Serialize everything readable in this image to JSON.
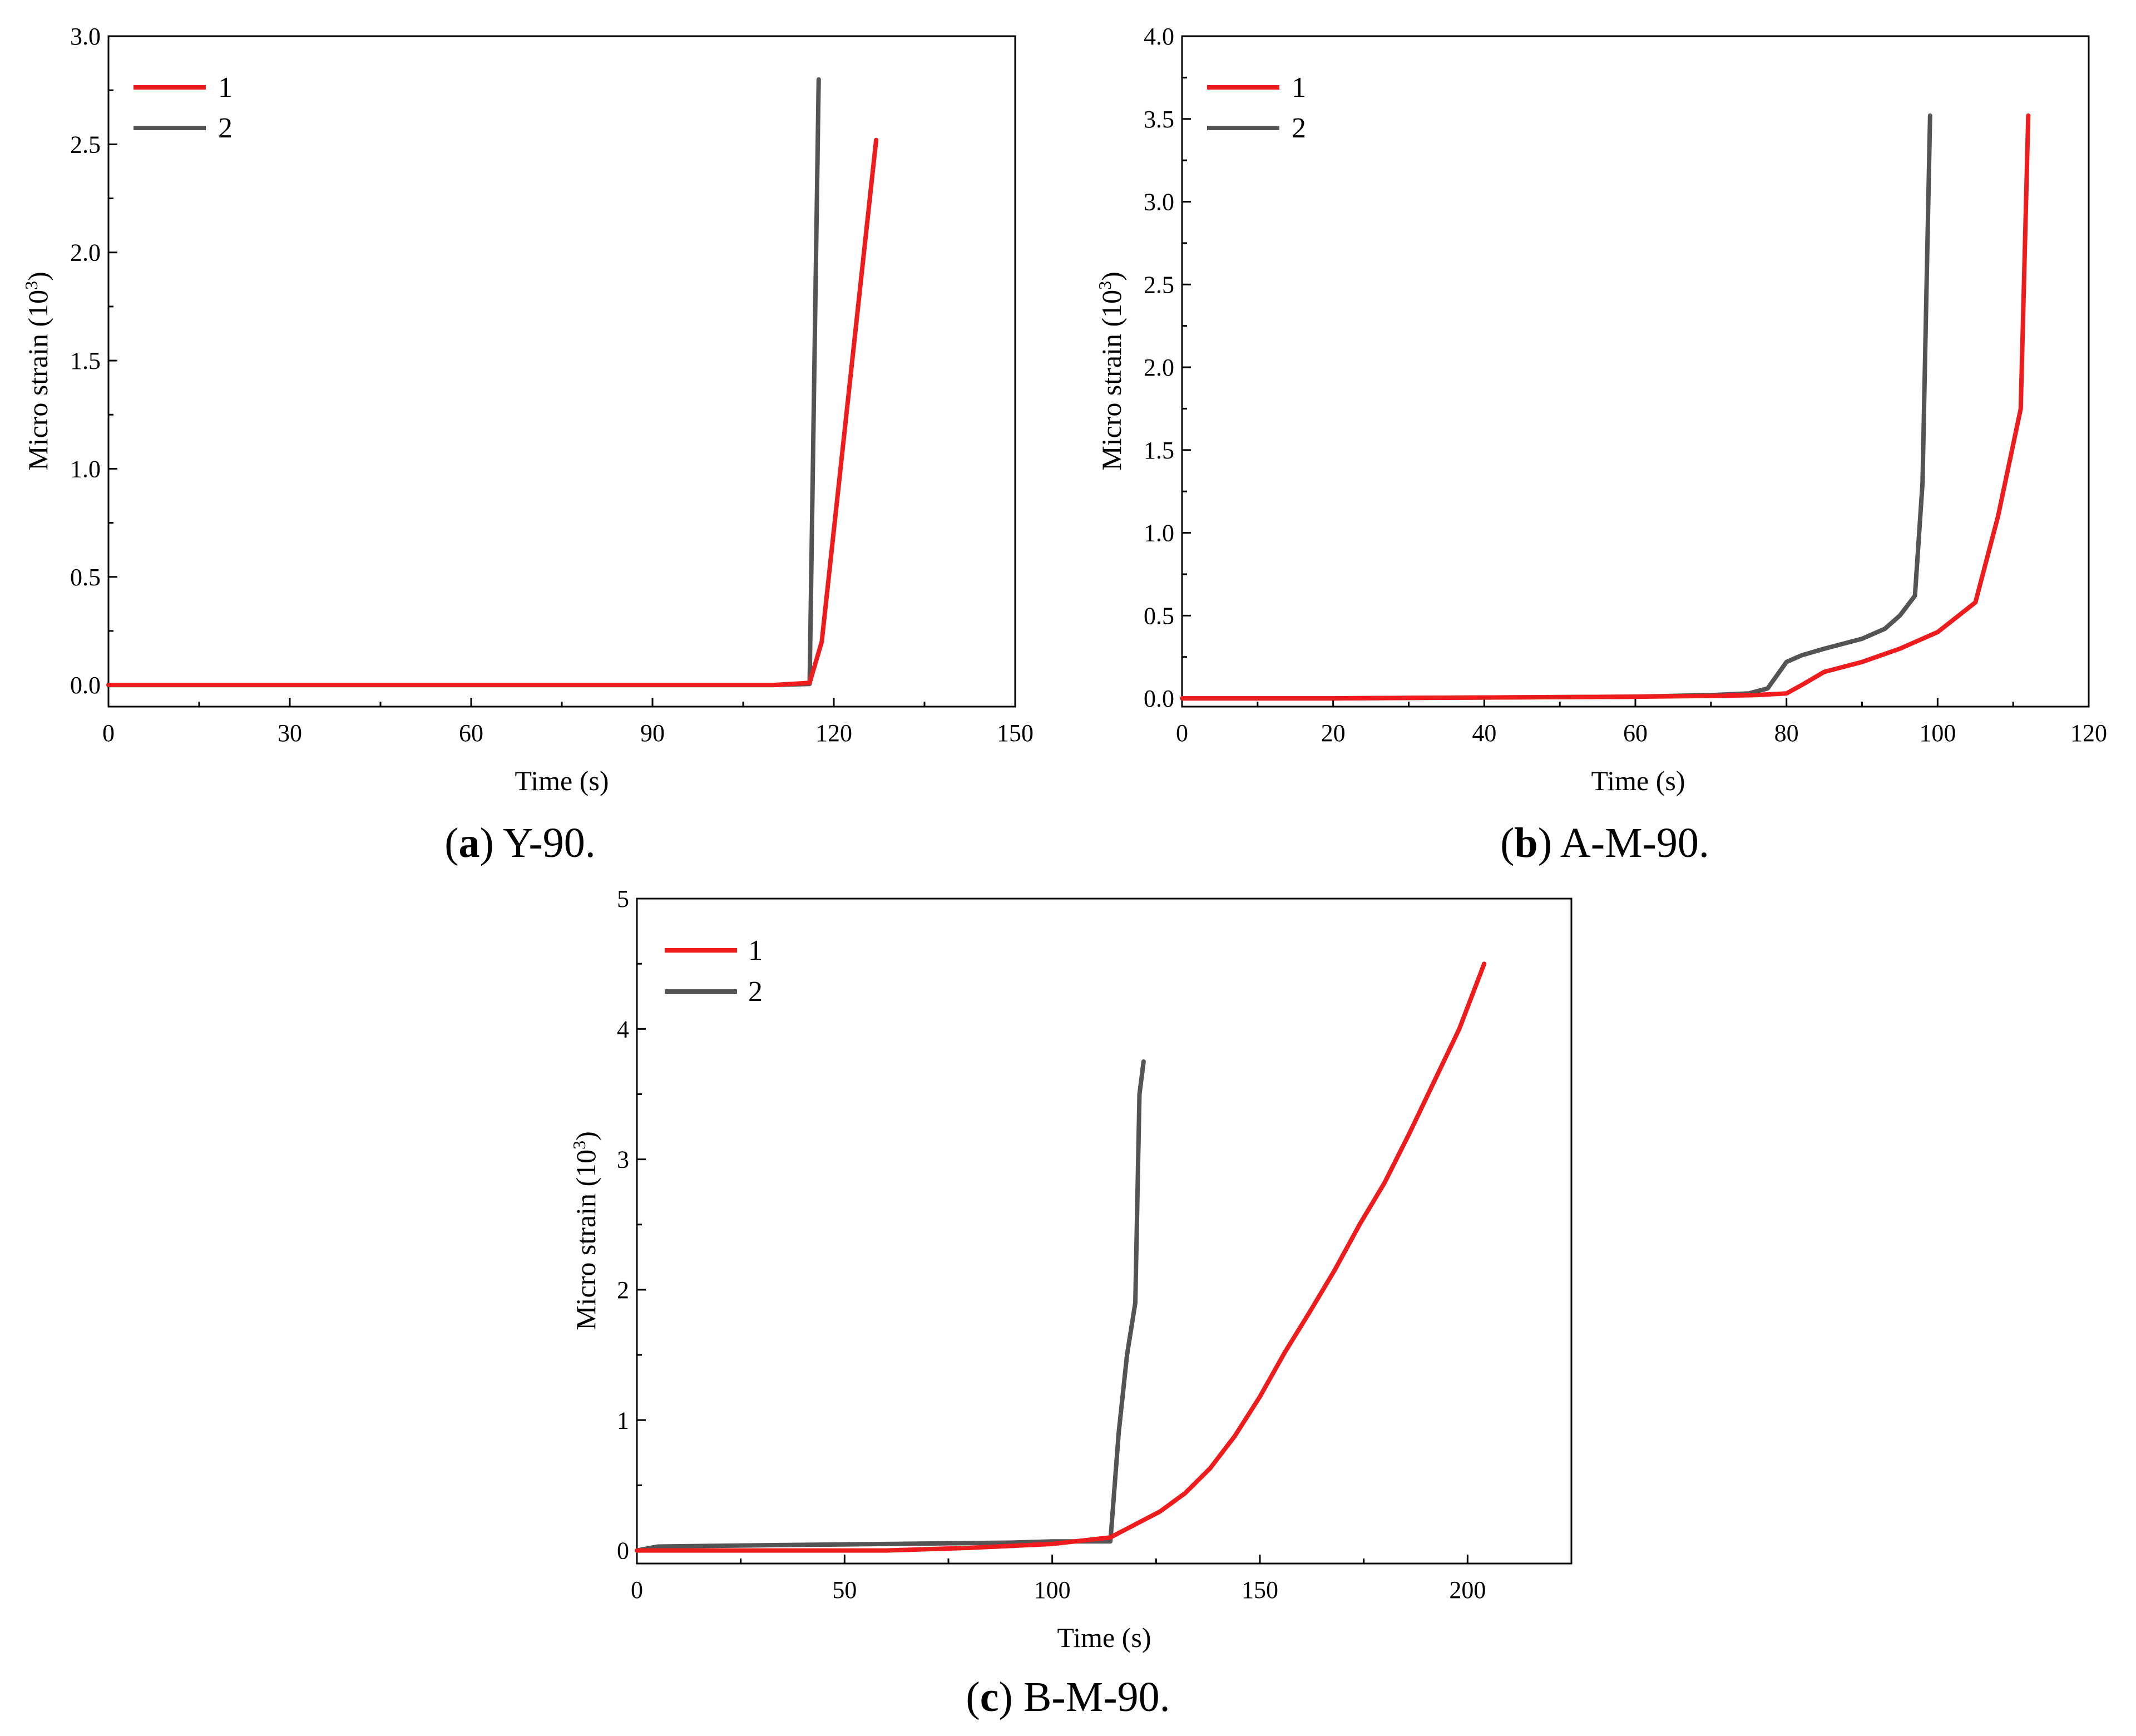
{
  "chart_data": [
    {
      "id": "a",
      "type": "line",
      "caption_letter": "a",
      "caption_text": "Y-90.",
      "xlabel": "Time (s)",
      "ylabel_main": "Micro strain (10",
      "ylabel_exp": "3",
      "ylabel_close": ")",
      "xlim": [
        0,
        150
      ],
      "ylim": [
        -0.1,
        3.0
      ],
      "xticks": [
        0,
        30,
        60,
        90,
        120,
        150
      ],
      "xtick_labels": [
        "0",
        "30",
        "60",
        "90",
        "120",
        "150"
      ],
      "yticks": [
        0.0,
        0.5,
        1.0,
        1.5,
        2.0,
        2.5,
        3.0
      ],
      "ytick_labels": [
        "0.0",
        "0.5",
        "1.0",
        "1.5",
        "2.0",
        "2.5",
        "3.0"
      ],
      "legend_position": "top-left",
      "series": [
        {
          "name": "1",
          "color": "#ee1c1c",
          "x": [
            0,
            30,
            60,
            90,
            110,
            116,
            118,
            127
          ],
          "y": [
            0.0,
            0.0,
            0.0,
            0.0,
            0.0,
            0.01,
            0.2,
            2.52
          ]
        },
        {
          "name": "2",
          "color": "#545454",
          "x": [
            0,
            30,
            60,
            90,
            110,
            116,
            117.5
          ],
          "y": [
            0.0,
            0.0,
            0.0,
            0.0,
            0.0,
            0.005,
            2.8
          ]
        }
      ]
    },
    {
      "id": "b",
      "type": "line",
      "caption_letter": "b",
      "caption_text": "A-M-90.",
      "xlabel": "Time (s)",
      "ylabel_main": "Micro strain (10",
      "ylabel_exp": "3",
      "ylabel_close": ")",
      "xlim": [
        0,
        120
      ],
      "ylim": [
        -0.05,
        4.0
      ],
      "xticks": [
        0,
        20,
        40,
        60,
        80,
        100,
        120
      ],
      "xtick_labels": [
        "0",
        "20",
        "40",
        "60",
        "80",
        "100",
        "120"
      ],
      "yticks": [
        0.0,
        0.5,
        1.0,
        1.5,
        2.0,
        2.5,
        3.0,
        3.5,
        4.0
      ],
      "ytick_labels": [
        "0.0",
        "0.5",
        "1.0",
        "1.5",
        "2.0",
        "2.5",
        "3.0",
        "3.5",
        "4.0"
      ],
      "legend_position": "top-left",
      "series": [
        {
          "name": "1",
          "color": "#ee1c1c",
          "x": [
            0,
            20,
            40,
            60,
            70,
            76,
            80,
            82,
            85,
            90,
            95,
            100,
            105,
            108,
            111,
            112
          ],
          "y": [
            0.0,
            0.0,
            0.005,
            0.01,
            0.015,
            0.02,
            0.03,
            0.08,
            0.16,
            0.22,
            0.3,
            0.4,
            0.58,
            1.1,
            1.75,
            3.52
          ]
        },
        {
          "name": "2",
          "color": "#545454",
          "x": [
            0,
            20,
            40,
            60,
            70,
            75,
            77.5,
            80,
            82,
            85,
            90,
            93,
            95,
            97,
            98,
            99
          ],
          "y": [
            0.0,
            0.0,
            0.005,
            0.01,
            0.02,
            0.03,
            0.06,
            0.22,
            0.26,
            0.3,
            0.36,
            0.42,
            0.5,
            0.62,
            1.3,
            3.52
          ]
        }
      ]
    },
    {
      "id": "c",
      "type": "line",
      "caption_letter": "c",
      "caption_text": "B-M-90.",
      "xlabel": "Time (s)",
      "ylabel_main": "Micro strain (10",
      "ylabel_exp": "3",
      "ylabel_close": ")",
      "xlim": [
        0,
        225
      ],
      "ylim": [
        -0.1,
        5.0
      ],
      "xticks": [
        0,
        50,
        100,
        150,
        200
      ],
      "xtick_labels": [
        "0",
        "50",
        "100",
        "150",
        "200"
      ],
      "yticks": [
        0,
        1,
        2,
        3,
        4,
        5
      ],
      "ytick_labels": [
        "0",
        "1",
        "2",
        "3",
        "4",
        "5"
      ],
      "legend_position": "top-left",
      "series": [
        {
          "name": "1",
          "color": "#ee1c1c",
          "x": [
            0,
            30,
            60,
            80,
            100,
            114,
            120,
            126,
            132,
            138,
            144,
            150,
            156,
            162,
            168,
            174,
            180,
            186,
            192,
            198,
            204
          ],
          "y": [
            0.0,
            0.0,
            0.0,
            0.02,
            0.05,
            0.1,
            0.2,
            0.3,
            0.44,
            0.63,
            0.88,
            1.18,
            1.52,
            1.83,
            2.15,
            2.5,
            2.82,
            3.2,
            3.6,
            4.0,
            4.5
          ]
        },
        {
          "name": "2",
          "color": "#545454",
          "x": [
            0,
            5,
            30,
            60,
            90,
            100,
            114,
            116,
            118,
            120,
            121,
            122
          ],
          "y": [
            0.0,
            0.03,
            0.04,
            0.05,
            0.06,
            0.07,
            0.07,
            0.9,
            1.5,
            1.9,
            3.5,
            3.75
          ]
        }
      ]
    }
  ]
}
